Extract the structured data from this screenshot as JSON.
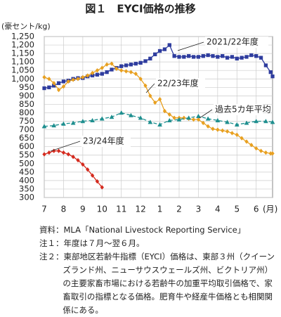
{
  "chart_data": {
    "type": "line",
    "title": "図１　EYCI価格の推移",
    "y_unit": "(豪セント/kg)",
    "x_unit": "(月)",
    "xlim": [
      0,
      11.85
    ],
    "xticks": [
      {
        "value": 0,
        "label": "7"
      },
      {
        "value": 1,
        "label": "8"
      },
      {
        "value": 2,
        "label": "9"
      },
      {
        "value": 3,
        "label": "10"
      },
      {
        "value": 4,
        "label": "11"
      },
      {
        "value": 5,
        "label": "12"
      },
      {
        "value": 6,
        "label": "1"
      },
      {
        "value": 7,
        "label": "2"
      },
      {
        "value": 8,
        "label": "3"
      },
      {
        "value": 9,
        "label": "4"
      },
      {
        "value": 10,
        "label": "5"
      },
      {
        "value": 11,
        "label": "6"
      }
    ],
    "ylim": [
      300,
      1250
    ],
    "yticks": [
      300,
      350,
      400,
      450,
      500,
      550,
      600,
      650,
      700,
      750,
      800,
      850,
      900,
      950,
      {
        "value": 1000,
        "label": "1,000"
      },
      {
        "value": 1050,
        "label": "1,050"
      },
      {
        "value": 1100,
        "label": "1,100"
      },
      {
        "value": 1150,
        "label": "1,150"
      },
      {
        "value": 1200,
        "label": "1,200"
      },
      {
        "value": 1250,
        "label": "1,250"
      }
    ],
    "grid": true,
    "series": [
      {
        "name": "2021/22年度",
        "color": "#2e3c9e",
        "marker": "square",
        "dash": false,
        "x": [
          0,
          0.25,
          0.5,
          0.75,
          1,
          1.25,
          1.5,
          1.75,
          2,
          2.25,
          2.5,
          2.75,
          3,
          3.25,
          3.5,
          3.75,
          4,
          4.25,
          4.5,
          4.75,
          5,
          5.25,
          5.5,
          5.75,
          6,
          6.25,
          6.5,
          6.75,
          7,
          7.25,
          7.5,
          7.75,
          8,
          8.25,
          8.5,
          8.75,
          9,
          9.25,
          9.5,
          9.75,
          10,
          10.25,
          10.5,
          10.75,
          11,
          11.25,
          11.5,
          11.75,
          11.85
        ],
        "values": [
          945,
          950,
          960,
          975,
          985,
          990,
          1000,
          1005,
          1005,
          1015,
          1020,
          1025,
          1030,
          1040,
          1055,
          1065,
          1075,
          1080,
          1085,
          1090,
          1095,
          1105,
          1120,
          1145,
          1165,
          1175,
          1200,
          1135,
          1130,
          1130,
          1135,
          1130,
          1130,
          1135,
          1140,
          1135,
          1130,
          1135,
          1125,
          1130,
          1120,
          1125,
          1130,
          1140,
          1135,
          1125,
          1080,
          1040,
          1015
        ]
      },
      {
        "name": "22/23年度",
        "color": "#e8a020",
        "marker": "diamond",
        "dash": false,
        "x": [
          0,
          0.25,
          0.5,
          0.75,
          1,
          1.25,
          1.5,
          1.75,
          2,
          2.25,
          2.5,
          2.75,
          3,
          3.25,
          3.5,
          3.75,
          4,
          4.25,
          4.5,
          4.75,
          5,
          5.25,
          5.5,
          5.75,
          6,
          6.25,
          6.5,
          6.75,
          7,
          7.25,
          7.5,
          7.75,
          8,
          8.25,
          8.5,
          8.75,
          9,
          9.25,
          9.5,
          9.75,
          10,
          10.25,
          10.5,
          10.75,
          11,
          11.25,
          11.5,
          11.75,
          11.85
        ],
        "values": [
          1010,
          1000,
          975,
          935,
          955,
          985,
          995,
          1000,
          1010,
          1020,
          1035,
          1050,
          1065,
          1085,
          1090,
          1060,
          1050,
          1045,
          1040,
          1030,
          1000,
          960,
          900,
          860,
          880,
          810,
          790,
          770,
          770,
          770,
          765,
          760,
          760,
          740,
          720,
          705,
          700,
          695,
          690,
          680,
          670,
          650,
          630,
          610,
          590,
          575,
          565,
          560,
          560
        ]
      },
      {
        "name": "過去5カ年平均",
        "color": "#1e8f8f",
        "marker": "triangle",
        "dash": true,
        "x": [
          0,
          0.5,
          1,
          1.5,
          2,
          2.5,
          3,
          3.5,
          4,
          4.5,
          5,
          5.5,
          6,
          6.5,
          7,
          7.5,
          8,
          8.5,
          9,
          9.5,
          10,
          10.5,
          11,
          11.5,
          11.85
        ],
        "values": [
          720,
          725,
          735,
          740,
          750,
          755,
          765,
          775,
          800,
          785,
          770,
          745,
          730,
          755,
          760,
          770,
          780,
          765,
          755,
          745,
          730,
          740,
          750,
          750,
          745
        ]
      },
      {
        "name": "23/24年度",
        "color": "#d42a1e",
        "marker": "diamond",
        "dash": false,
        "x": [
          0,
          0.25,
          0.5,
          0.75,
          1,
          1.25,
          1.5,
          1.75,
          2,
          2.25,
          2.5,
          2.75,
          3
        ],
        "values": [
          555,
          565,
          575,
          575,
          565,
          555,
          540,
          520,
          495,
          465,
          430,
          395,
          360
        ]
      }
    ],
    "notes": [
      "資料：MLA「National Livestock Reporting Service」",
      "注１：年度は７月～翌６月。",
      "注２：東部地区若齢牛指標（EYCI）価格は、東部３州（クイーンズランド州、ニューサウスウェールズ州、ビクトリア州）の主要家畜市場における若齢牛の加重平均取引価格で、家畜取引の指標となる価格。肥育牛や経産牛価格とも相関関係にある。"
    ]
  }
}
